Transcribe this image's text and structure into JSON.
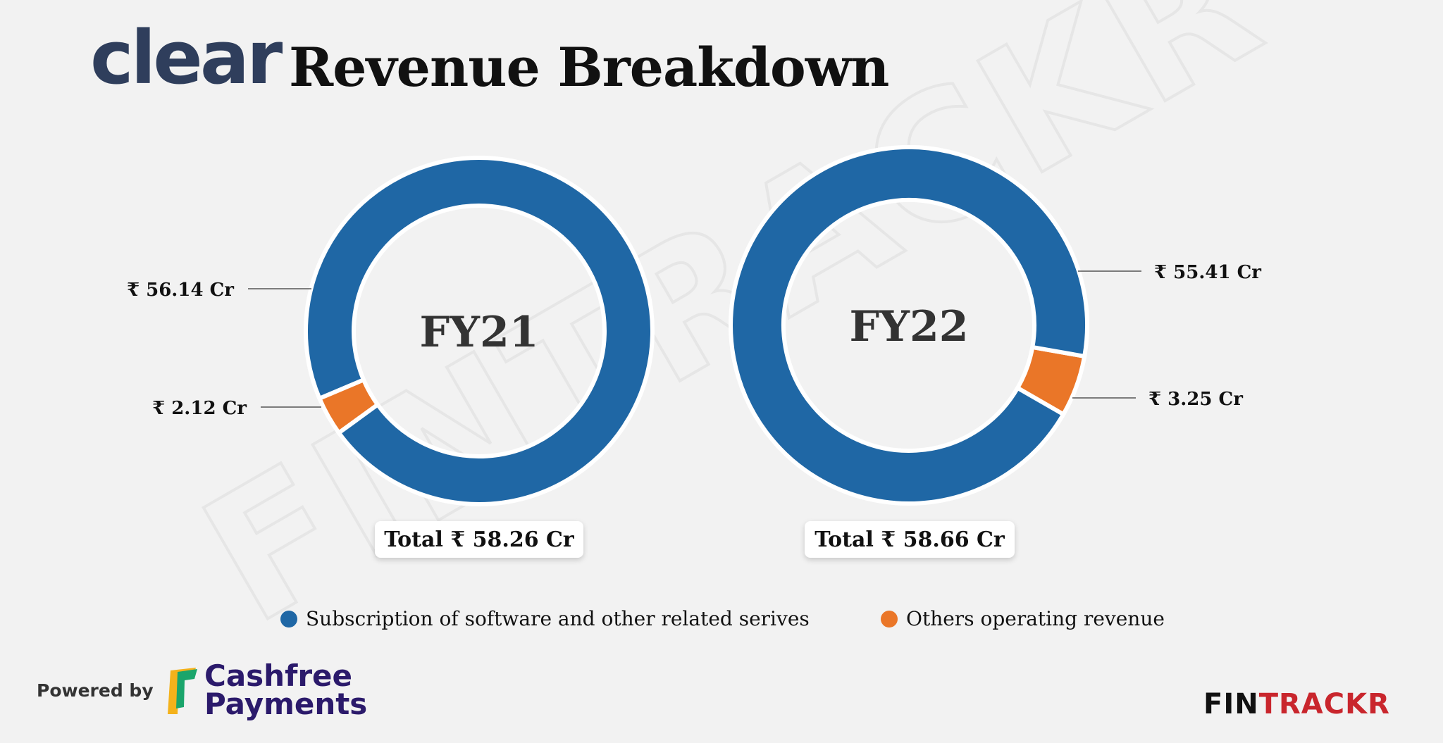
{
  "header": {
    "brand_logo": "clear",
    "title": "Revenue Breakdown"
  },
  "colors": {
    "subscription": "#1f67a5",
    "others": "#ea7628",
    "background": "#f2f2f2"
  },
  "chart_data": [
    {
      "type": "pie",
      "center_label": "FY21",
      "total_label": "Total ₹ 58.26 Cr",
      "slices": [
        {
          "name": "Subscription of software and other related serives",
          "value": 56.14,
          "label": "₹ 56.14 Cr"
        },
        {
          "name": "Others operating revenue",
          "value": 2.12,
          "label": "₹ 2.12 Cr"
        }
      ]
    },
    {
      "type": "pie",
      "center_label": "FY22",
      "total_label": "Total ₹ 58.66 Cr",
      "slices": [
        {
          "name": "Subscription of software and other related serives",
          "value": 55.41,
          "label": "₹ 55.41 Cr"
        },
        {
          "name": "Others operating revenue",
          "value": 3.25,
          "label": "₹ 3.25 Cr"
        }
      ]
    }
  ],
  "legend": {
    "items": [
      {
        "label": "Subscription of software and other related serives"
      },
      {
        "label": "Others operating revenue"
      }
    ]
  },
  "footer": {
    "powered_by": "Powered by",
    "cashfree_line1": "Cashfree",
    "cashfree_line2": "Payments",
    "fintrackr_a": "FIN",
    "fintrackr_b": "TRACKR",
    "watermark": "FINTRACKR"
  }
}
